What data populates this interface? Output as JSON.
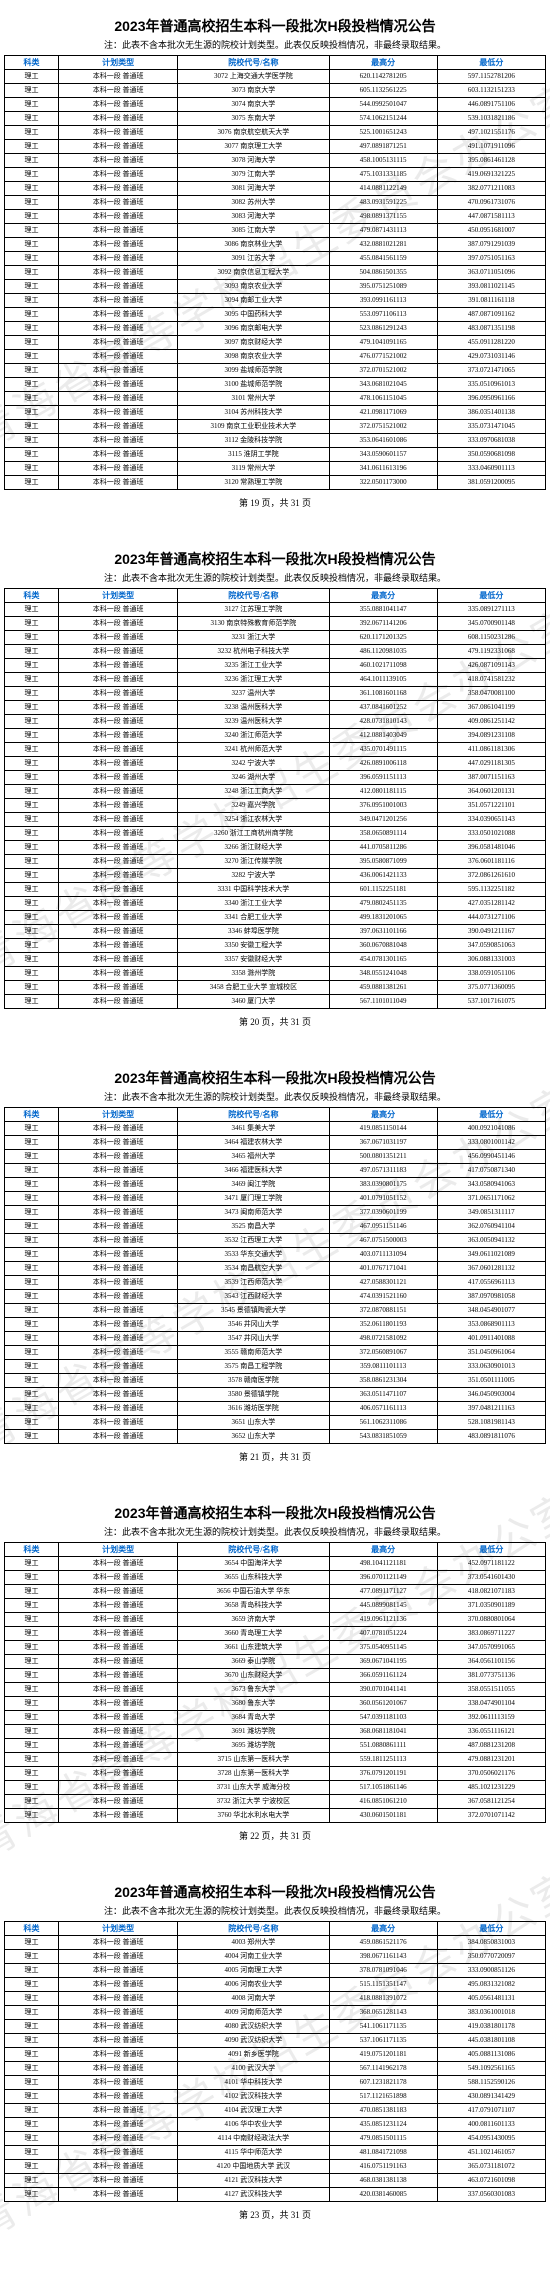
{
  "doc_title": "2023年普通高校招生本科一段批次H段投档情况公告",
  "note_text": "注：此表不含本批次无生源的院校计划类型。此表仅反映投档情况，非最终录取结果。",
  "watermark_text": "青海省高等学校招生委员会办公室",
  "headers": [
    "科类",
    "计划类型",
    "院校代号/名称",
    "最高分",
    "最低分"
  ],
  "pages": [
    {
      "page_label": "第 19 页，共 31 页",
      "rows": [
        [
          "理工",
          "本科一段 普通班",
          "3072  上海交通大学医学院",
          "620.1142781205",
          "597.1152781206"
        ],
        [
          "理工",
          "本科一段 普通班",
          "3073  南京大学",
          "605.1132561225",
          "603.1132151233"
        ],
        [
          "理工",
          "本科一段 普通班",
          "3074  南京大学",
          "544.0992501047",
          "446.0891751106"
        ],
        [
          "理工",
          "本科一段 普通班",
          "3075  东南大学",
          "574.1062151244",
          "539.1031821186"
        ],
        [
          "理工",
          "本科一段 普通班",
          "3076  南京航空航天大学",
          "525.1001651243",
          "497.1021551176"
        ],
        [
          "理工",
          "本科一段 普通班",
          "3077  南京理工大学",
          "497.0891871251",
          "491.1071911096"
        ],
        [
          "理工",
          "本科一段 普通班",
          "3078  河海大学",
          "458.1005131115",
          "395.0861461128"
        ],
        [
          "理工",
          "本科一段 普通班",
          "3079  江南大学",
          "475.1031331185",
          "419.0691321225"
        ],
        [
          "理工",
          "本科一段 普通班",
          "3081  河海大学",
          "414.0881122149",
          "382.0771211083"
        ],
        [
          "理工",
          "本科一段 普通班",
          "3082  苏州大学",
          "483.0931591225",
          "470.0961731076"
        ],
        [
          "理工",
          "本科一段 普通班",
          "3083  河海大学",
          "498.0891371155",
          "447.0871581113"
        ],
        [
          "理工",
          "本科一段 普通班",
          "3085  江南大学",
          "479.0871431113",
          "450.0951681007"
        ],
        [
          "理工",
          "本科一段 普通班",
          "3086  南京林业大学",
          "432.0881021281",
          "387.0791291039"
        ],
        [
          "理工",
          "本科一段 普通班",
          "3091  江苏大学",
          "455.0841561159",
          "397.0751051163"
        ],
        [
          "理工",
          "本科一段 普通班",
          "3092  南京信息工程大学",
          "504.0861501355",
          "363.0711051096"
        ],
        [
          "理工",
          "本科一段 普通班",
          "3093  南京农业大学",
          "395.0751251089",
          "393.0811021145"
        ],
        [
          "理工",
          "本科一段 普通班",
          "3094  南邮工业大学",
          "393.0991161113",
          "391.0811161118"
        ],
        [
          "理工",
          "本科一段 普通班",
          "3095  中国药科大学",
          "553.0971106113",
          "487.0871091162"
        ],
        [
          "理工",
          "本科一段 普通班",
          "3096  南京邮电大学",
          "523.0861291243",
          "483.0871351198"
        ],
        [
          "理工",
          "本科一段 普通班",
          "3097  南京财经大学",
          "479.1041091165",
          "455.0911281220"
        ],
        [
          "理工",
          "本科一段 普通班",
          "3098  南京农业大学",
          "476.0771521002",
          "429.0731031146"
        ],
        [
          "理工",
          "本科一段 普通班",
          "3099  盐城师范学院",
          "372.0701521002",
          "373.0721471065"
        ],
        [
          "理工",
          "本科一段 普通班",
          "3100  盐城师范学院",
          "343.0681021045",
          "335.0510961013"
        ],
        [
          "理工",
          "本科一段 普通班",
          "3101  常州大学",
          "478.1061151045",
          "396.0950961166"
        ],
        [
          "理工",
          "本科一段 普通班",
          "3104  苏州科技大学",
          "421.0981171069",
          "386.0351401138"
        ],
        [
          "理工",
          "本科一段 普通班",
          "3109  南京工业职业技术大学",
          "372.0751521002",
          "335.0731471045"
        ],
        [
          "理工",
          "本科一段 普通班",
          "3112  金陵科技学院",
          "353.0641601086",
          "333.0970681038"
        ],
        [
          "理工",
          "本科一段 普通班",
          "3115  淮阴工学院",
          "343.0590601157",
          "350.0590681098"
        ],
        [
          "理工",
          "本科一段 普通班",
          "3119  常州大学",
          "341.0611613196",
          "333.0460901113"
        ],
        [
          "理工",
          "本科一段 普通班",
          "3120  常熟理工学院",
          "322.0501173000",
          "381.0591200095"
        ]
      ]
    },
    {
      "page_label": "第 20 页，共 31 页",
      "rows": [
        [
          "理工",
          "本科一段 普通班",
          "3127  江苏理工学院",
          "355.0881041147",
          "335.0891271113"
        ],
        [
          "理工",
          "本科一段 普通班",
          "3130  南京特殊教育师范学院",
          "392.0671141206",
          "345.0700901148"
        ],
        [
          "理工",
          "本科一段 普通班",
          "3231  浙江大学",
          "620.1171201325",
          "608.1150231286"
        ],
        [
          "理工",
          "本科一段 普通班",
          "3232  杭州电子科技大学",
          "486.1120981035",
          "479.1192331068"
        ],
        [
          "理工",
          "本科一段 普通班",
          "3235  浙江工业大学",
          "460.1021711098",
          "426.0871091143"
        ],
        [
          "理工",
          "本科一段 普通班",
          "3236  浙江理工大学",
          "464.1011139105",
          "418.0741581232"
        ],
        [
          "理工",
          "本科一段 普通班",
          "3237  温州大学",
          "361.1081601168",
          "358.0470081100"
        ],
        [
          "理工",
          "本科一段 普通班",
          "3238  温州医科大学",
          "437.0841601252",
          "367.0861041199"
        ],
        [
          "理工",
          "本科一段 普通班",
          "3239  温州医科大学",
          "428.0731810143",
          "409.0861251142"
        ],
        [
          "理工",
          "本科一段 普通班",
          "3240  浙江师范大学",
          "412.0881403049",
          "394.0891231108"
        ],
        [
          "理工",
          "本科一段 普通班",
          "3241  杭州师范大学",
          "435.0701491115",
          "411.0861181306"
        ],
        [
          "理工",
          "本科一段 普通班",
          "3242  宁波大学",
          "426.0891006118",
          "447.0291181305"
        ],
        [
          "理工",
          "本科一段 普通班",
          "3246  湖州大学",
          "396.0591151113",
          "387.0071151163"
        ],
        [
          "理工",
          "本科一段 普通班",
          "3248  浙江工商大学",
          "412.0801181115",
          "364.0601201131"
        ],
        [
          "理工",
          "本科一段 普通班",
          "3249  嘉兴学院",
          "376.0951001003",
          "351.0571221101"
        ],
        [
          "理工",
          "本科一段 普通班",
          "3254  浙江农林大学",
          "349.0471201256",
          "334.0390651143"
        ],
        [
          "理工",
          "本科一段 普通班",
          "3260  浙江工商杭州商学院",
          "358.0650891114",
          "333.0501021088"
        ],
        [
          "理工",
          "本科一段 普通班",
          "3266  浙江财经大学",
          "441.0705811286",
          "396.0581481046"
        ],
        [
          "理工",
          "本科一段 普通班",
          "3270  浙江传媒学院",
          "395.0580871099",
          "376.0601181116"
        ],
        [
          "理工",
          "本科一段 普通班",
          "3282  宁波大学",
          "436.0061421133",
          "372.0861261610"
        ],
        [
          "理工",
          "本科一段 普通班",
          "3331  中国科学技术大学",
          "601.1152251181",
          "595.1132251182"
        ],
        [
          "理工",
          "本科一段 普通班",
          "3340  浙江工业大学",
          "479.0802451135",
          "427.0351281142"
        ],
        [
          "理工",
          "本科一段 普通班",
          "3341  合肥工业大学",
          "499.1831201065",
          "444.0731271106"
        ],
        [
          "理工",
          "本科一段 普通班",
          "3346  蚌埠医学院",
          "397.0631101166",
          "390.0491211167"
        ],
        [
          "理工",
          "本科一段 普通班",
          "3350  安徽工程大学",
          "360.0670881048",
          "347.0590851063"
        ],
        [
          "理工",
          "本科一段 普通班",
          "3357  安徽财经大学",
          "454.0781301165",
          "306.0881331003"
        ],
        [
          "理工",
          "本科一段 普通班",
          "3358  滁州学院",
          "348.0551241048",
          "338.0591051106"
        ],
        [
          "理工",
          "本科一段 普通班",
          "3458  合肥工业大学 宣城校区",
          "459.0881381261",
          "375.0771360095"
        ],
        [
          "理工",
          "本科一段 普通班",
          "3460  厦门大学",
          "567.1101011049",
          "537.1017161075"
        ]
      ]
    },
    {
      "page_label": "第 21 页，共 31 页",
      "rows": [
        [
          "理工",
          "本科一段 普通班",
          "3461  集美大学",
          "419.0851150144",
          "400.0921041086"
        ],
        [
          "理工",
          "本科一段 普通班",
          "3464  福建农林大学",
          "367.0671031197",
          "333.0801001142"
        ],
        [
          "理工",
          "本科一段 普通班",
          "3465  福州大学",
          "500.0801351211",
          "456.0990451146"
        ],
        [
          "理工",
          "本科一段 普通班",
          "3466  福建医科大学",
          "497.0571311183",
          "417.0750871340"
        ],
        [
          "理工",
          "本科一段 普通班",
          "3469  闽江学院",
          "383.0390801175",
          "343.0580941063"
        ],
        [
          "理工",
          "本科一段 普通班",
          "3471  厦门理工学院",
          "401.0791051152",
          "371.0651171062"
        ],
        [
          "理工",
          "本科一段 普通班",
          "3473  闽南师范大学",
          "377.0390601199",
          "349.0851311117"
        ],
        [
          "理工",
          "本科一段 普通班",
          "3525  南昌大学",
          "467.0951151146",
          "362.0760941104"
        ],
        [
          "理工",
          "本科一段 普通班",
          "3532  江西理工大学",
          "467.0751500003",
          "363.0050941132"
        ],
        [
          "理工",
          "本科一段 普通班",
          "3533  华东交通大学",
          "403.0711131094",
          "349.0611021089"
        ],
        [
          "理工",
          "本科一段 普通班",
          "3534  南昌航空大学",
          "401.0767171041",
          "367.0601281132"
        ],
        [
          "理工",
          "本科一段 普通班",
          "3539  江西师范大学",
          "427.0588301121",
          "417.0556961113"
        ],
        [
          "理工",
          "本科一段 普通班",
          "3543  江西财经大学",
          "474.0391521160",
          "387.0970981058"
        ],
        [
          "理工",
          "本科一段 普通班",
          "3545  景德镇陶瓷大学",
          "372.0870881151",
          "348.0454901077"
        ],
        [
          "理工",
          "本科一段 普通班",
          "3546  井冈山大学",
          "352.0611801193",
          "353.0868901113"
        ],
        [
          "理工",
          "本科一段 普通班",
          "3547  井冈山大学",
          "498.0721581092",
          "401.0911401088"
        ],
        [
          "理工",
          "本科一段 普通班",
          "3555  赣南师范大学",
          "372.0560891067",
          "351.0450961064"
        ],
        [
          "理工",
          "本科一段 普通班",
          "3575  南昌工程学院",
          "359.0811101113",
          "333.0630901013"
        ],
        [
          "理工",
          "本科一段 普通班",
          "3578  赣南医学院",
          "358.0861231304",
          "351.0501111005"
        ],
        [
          "理工",
          "本科一段 普通班",
          "3580  景德镇学院",
          "363.0511471107",
          "346.0450903004"
        ],
        [
          "理工",
          "本科一段 普通班",
          "3616  潍坊医学院",
          "406.0571161113",
          "397.0481211163"
        ],
        [
          "理工",
          "本科一段 普通班",
          "3651  山东大学",
          "561.1062311086",
          "528.1081981143"
        ],
        [
          "理工",
          "本科一段 普通班",
          "3652  山东大学",
          "543.0831851059",
          "483.0891811076"
        ]
      ]
    },
    {
      "page_label": "第 22 页，共 31 页",
      "rows": [
        [
          "理工",
          "本科一段 普通班",
          "3654  中国海洋大学",
          "498.1041121181",
          "452.0971181122"
        ],
        [
          "理工",
          "本科一段 普通班",
          "3655  山东科技大学",
          "396.0701121149",
          "373.0541601430"
        ],
        [
          "理工",
          "本科一段 普通班",
          "3656  中国石油大学 华东",
          "477.0891171127",
          "418.0821071183"
        ],
        [
          "理工",
          "本科一段 普通班",
          "3658  青岛科技大学",
          "445.0899081145",
          "371.0350901189"
        ],
        [
          "理工",
          "本科一段 普通班",
          "3659  济南大学",
          "419.0961121136",
          "370.0880801064"
        ],
        [
          "理工",
          "本科一段 普通班",
          "3660  青岛理工大学",
          "407.0781051224",
          "383.0869711227"
        ],
        [
          "理工",
          "本科一段 普通班",
          "3661  山东建筑大学",
          "375.0540951145",
          "347.0570991065"
        ],
        [
          "理工",
          "本科一段 普通班",
          "3669  泰山学院",
          "369.0671041195",
          "364.0561101156"
        ],
        [
          "理工",
          "本科一段 普通班",
          "3670  山东财经大学",
          "366.0591161124",
          "381.0773751136"
        ],
        [
          "理工",
          "本科一段 普通班",
          "3673  鲁东大学",
          "390.0701041141",
          "358.0551511055"
        ],
        [
          "理工",
          "本科一段 普通班",
          "3680  鲁东大学",
          "360.0561201067",
          "338.0474901104"
        ],
        [
          "理工",
          "本科一段 普通班",
          "3684  青岛大学",
          "547.0391181103",
          "392.0611113159"
        ],
        [
          "理工",
          "本科一段 普通班",
          "3691  潍坊学院",
          "368.0681181041",
          "336.0551116121"
        ],
        [
          "理工",
          "本科一段 普通班",
          "3695  潍坊学院",
          "551.0880861111",
          "487.0881231208"
        ],
        [
          "理工",
          "本科一段 普通班",
          "3715  山东第一医科大学",
          "559.1811251113",
          "479.0881231201"
        ],
        [
          "理工",
          "本科一段 普通班",
          "3728  山东第一医科大学",
          "376.0791201191",
          "370.0506021176"
        ],
        [
          "理工",
          "本科一段 普通班",
          "3731  山东大学 威海分校",
          "517.1051861146",
          "485.1021231229"
        ],
        [
          "理工",
          "本科一段 普通班",
          "3732  浙江大学 宁波校区",
          "416.0851061210",
          "367.0581121254"
        ],
        [
          "理工",
          "本科一段 普通班",
          "3760  华北水利水电大学",
          "430.0601501181",
          "372.0701071142"
        ]
      ]
    },
    {
      "page_label": "第 23 页，共 31 页",
      "rows": [
        [
          "理工",
          "本科一段 普通班",
          "4003  郑州大学",
          "459.0861521176",
          "384.0850831003"
        ],
        [
          "理工",
          "本科一段 普通班",
          "4004  河南工业大学",
          "398.0671161143",
          "350.0770720097"
        ],
        [
          "理工",
          "本科一段 普通班",
          "4005  河南理工大学",
          "378.0781091046",
          "333.0900851126"
        ],
        [
          "理工",
          "本科一段 普通班",
          "4006  河南农业大学",
          "515.1151351147",
          "495.0831321082"
        ],
        [
          "理工",
          "本科一段 普通班",
          "4008  河南大学",
          "418.0881391072",
          "405.0561481131"
        ],
        [
          "理工",
          "本科一段 普通班",
          "4009  河南师范大学",
          "368.0651281143",
          "383.0361001018"
        ],
        [
          "理工",
          "本科一段 普通班",
          "4080  武汉纺织大学",
          "541.1061171135",
          "419.0381801178"
        ],
        [
          "理工",
          "本科一段 普通班",
          "4090  武汉纺织大学",
          "537.1061171135",
          "445.0381801108"
        ],
        [
          "理工",
          "本科一段 普通班",
          "4091  新乡医学院",
          "419.0751201181",
          "405.0881131086"
        ],
        [
          "理工",
          "本科一段 普通班",
          "4100  武汉大学",
          "567.1141962178",
          "549.1092561165"
        ],
        [
          "理工",
          "本科一段 普通班",
          "4101  华中科技大学",
          "607.1231821178",
          "588.1152590126"
        ],
        [
          "理工",
          "本科一段 普通班",
          "4102  武汉科技大学",
          "517.1121651898",
          "430.0891341429"
        ],
        [
          "理工",
          "本科一段 普通班",
          "4104  武汉理工大学",
          "470.0851381183",
          "417.0791071107"
        ],
        [
          "理工",
          "本科一段 普通班",
          "4106  华中农业大学",
          "435.0851231124",
          "400.0811601133"
        ],
        [
          "理工",
          "本科一段 普通班",
          "4114  中南财经政法大学",
          "479.0851501115",
          "454.0951430095"
        ],
        [
          "理工",
          "本科一段 普通班",
          "4115  华中师范大学",
          "481.0841721098",
          "451.1021461057"
        ],
        [
          "理工",
          "本科一段 普通班",
          "4120  中国地质大学 武汉",
          "416.0751191163",
          "365.0731181072"
        ],
        [
          "理工",
          "本科一段 普通班",
          "4121  武汉科技大学",
          "468.0381381138",
          "463.0721601098"
        ],
        [
          "理工",
          "本科一段 普通班",
          "4127  武汉科技大学",
          "420.0381460085",
          "337.0560301083"
        ]
      ]
    }
  ]
}
